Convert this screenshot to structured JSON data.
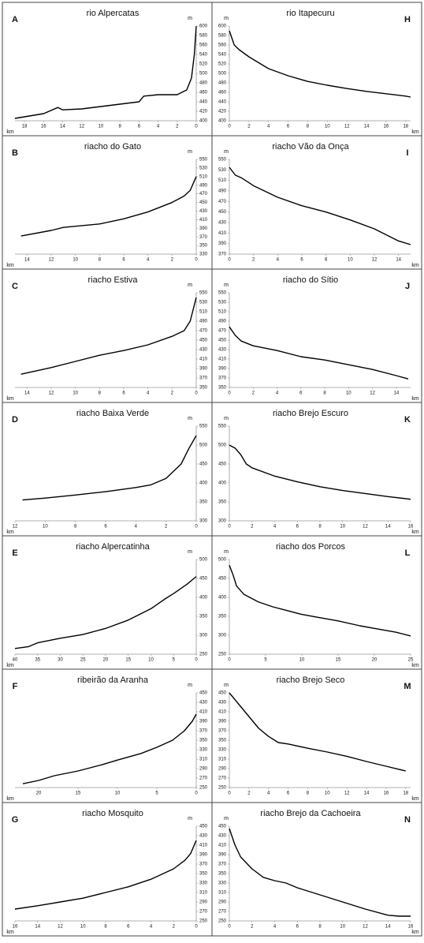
{
  "chart_data": [
    {
      "type": "line",
      "label": "A",
      "title": "rio Alpercatas",
      "xlabel": "km",
      "ylabel": "m",
      "y_axis_side": "right",
      "color": "#000000",
      "xlim": [
        19,
        0
      ],
      "xticks": [
        18,
        16,
        14,
        12,
        10,
        8,
        6,
        4,
        2,
        0
      ],
      "ylim": [
        400,
        600
      ],
      "yticks": [
        400,
        420,
        440,
        460,
        480,
        500,
        520,
        540,
        560,
        580,
        600
      ],
      "x": [
        19,
        16,
        14.5,
        14,
        12,
        10,
        8,
        6,
        5.5,
        4,
        2,
        1,
        0.5,
        0.2,
        0
      ],
      "values": [
        405,
        415,
        428,
        423,
        425,
        430,
        435,
        440,
        452,
        455,
        455,
        465,
        490,
        540,
        600
      ]
    },
    {
      "type": "line",
      "label": "H",
      "title": "rio Itapecuru",
      "xlabel": "km",
      "ylabel": "m",
      "y_axis_side": "left",
      "color": "#000000",
      "xlim": [
        0,
        18.5
      ],
      "xticks": [
        0,
        2,
        4,
        6,
        8,
        10,
        12,
        14,
        16,
        18
      ],
      "ylim": [
        400,
        600
      ],
      "yticks": [
        400,
        420,
        440,
        460,
        480,
        500,
        520,
        540,
        560,
        580,
        600
      ],
      "x": [
        0,
        0.5,
        1,
        2,
        4,
        6,
        8,
        10,
        12,
        14,
        16,
        18,
        18.5
      ],
      "values": [
        590,
        560,
        550,
        535,
        510,
        495,
        483,
        475,
        468,
        462,
        457,
        452,
        450
      ]
    },
    {
      "type": "line",
      "label": "B",
      "title": "riacho do Gato",
      "xlabel": "km",
      "ylabel": "m",
      "y_axis_side": "right",
      "color": "#000000",
      "xlim": [
        15,
        0
      ],
      "xticks": [
        14,
        12,
        10,
        8,
        6,
        4,
        2,
        0
      ],
      "ylim": [
        330,
        550
      ],
      "yticks": [
        330,
        350,
        370,
        390,
        410,
        430,
        450,
        470,
        490,
        510,
        530,
        550
      ],
      "x": [
        14.5,
        12,
        11,
        8,
        6,
        4,
        2,
        1,
        0.5,
        0
      ],
      "values": [
        372,
        385,
        392,
        400,
        412,
        428,
        450,
        465,
        478,
        510
      ]
    },
    {
      "type": "line",
      "label": "I",
      "title": "riacho Vão da Onça",
      "xlabel": "km",
      "ylabel": "m",
      "y_axis_side": "left",
      "color": "#000000",
      "xlim": [
        0,
        15
      ],
      "xticks": [
        0,
        2,
        4,
        6,
        8,
        10,
        12,
        14
      ],
      "ylim": [
        370,
        550
      ],
      "yticks": [
        370,
        390,
        410,
        430,
        450,
        470,
        490,
        510,
        530,
        550
      ],
      "x": [
        0,
        0.5,
        1,
        2,
        4,
        6,
        8,
        10,
        12,
        14,
        15
      ],
      "values": [
        535,
        520,
        515,
        500,
        478,
        462,
        450,
        435,
        418,
        395,
        388
      ]
    },
    {
      "type": "line",
      "label": "C",
      "title": "riacho Estiva",
      "xlabel": "km",
      "ylabel": "m",
      "y_axis_side": "right",
      "color": "#000000",
      "xlim": [
        15,
        0
      ],
      "xticks": [
        14,
        12,
        10,
        8,
        6,
        4,
        2,
        0
      ],
      "ylim": [
        350,
        550
      ],
      "yticks": [
        350,
        370,
        390,
        410,
        430,
        450,
        470,
        490,
        510,
        530,
        550
      ],
      "x": [
        14.5,
        12,
        10,
        8,
        6,
        4,
        2,
        1,
        0.5,
        0
      ],
      "values": [
        378,
        392,
        405,
        418,
        428,
        440,
        458,
        470,
        490,
        540
      ]
    },
    {
      "type": "line",
      "label": "J",
      "title": "riacho do Sítio",
      "xlabel": "km",
      "ylabel": "m",
      "y_axis_side": "left",
      "color": "#000000",
      "xlim": [
        0,
        15.2
      ],
      "xticks": [
        0,
        2,
        4,
        6,
        8,
        10,
        12,
        14
      ],
      "ylim": [
        350,
        550
      ],
      "yticks": [
        350,
        370,
        390,
        410,
        430,
        450,
        470,
        490,
        510,
        530,
        550
      ],
      "x": [
        0,
        0.5,
        1,
        2,
        4,
        6,
        8,
        10,
        12,
        14,
        15
      ],
      "values": [
        478,
        460,
        448,
        438,
        428,
        415,
        408,
        398,
        388,
        375,
        368
      ]
    },
    {
      "type": "line",
      "label": "D",
      "title": "riacho Baixa Verde",
      "xlabel": "km",
      "ylabel": "m",
      "y_axis_side": "right",
      "color": "#000000",
      "xlim": [
        12,
        0
      ],
      "xticks": [
        12,
        10,
        8,
        6,
        4,
        2,
        0
      ],
      "ylim": [
        300,
        550
      ],
      "yticks": [
        300,
        350,
        400,
        450,
        500,
        550
      ],
      "x": [
        11.5,
        10,
        8,
        6,
        4,
        3,
        2,
        1,
        0.5,
        0
      ],
      "values": [
        355,
        360,
        368,
        377,
        388,
        395,
        412,
        450,
        490,
        525
      ]
    },
    {
      "type": "line",
      "label": "K",
      "title": "riacho Brejo Escuro",
      "xlabel": "km",
      "ylabel": "m",
      "y_axis_side": "left",
      "color": "#000000",
      "xlim": [
        0,
        16
      ],
      "xticks": [
        0,
        2,
        4,
        6,
        8,
        10,
        12,
        14,
        16
      ],
      "ylim": [
        300,
        550
      ],
      "yticks": [
        300,
        350,
        400,
        450,
        500,
        550
      ],
      "x": [
        0,
        0.5,
        1,
        1.5,
        2,
        4,
        6,
        8,
        10,
        12,
        14,
        16
      ],
      "values": [
        500,
        492,
        475,
        450,
        440,
        418,
        403,
        390,
        380,
        372,
        364,
        357
      ]
    },
    {
      "type": "line",
      "label": "E",
      "title": "riacho Alpercatinha",
      "xlabel": "km",
      "ylabel": "m",
      "y_axis_side": "right",
      "color": "#000000",
      "xlim": [
        40,
        0
      ],
      "xticks": [
        40,
        35,
        30,
        25,
        20,
        15,
        10,
        5,
        0
      ],
      "ylim": [
        250,
        500
      ],
      "yticks": [
        250,
        300,
        350,
        400,
        450,
        500
      ],
      "x": [
        40,
        37,
        35,
        30,
        25,
        20,
        15,
        10,
        7,
        5,
        2,
        0
      ],
      "values": [
        265,
        270,
        280,
        292,
        302,
        318,
        340,
        370,
        395,
        410,
        435,
        455
      ]
    },
    {
      "type": "line",
      "label": "L",
      "title": "riacho dos Porcos",
      "xlabel": "km",
      "ylabel": "m",
      "y_axis_side": "left",
      "color": "#000000",
      "xlim": [
        0,
        25
      ],
      "xticks": [
        0,
        5,
        10,
        15,
        20,
        25
      ],
      "ylim": [
        250,
        500
      ],
      "yticks": [
        250,
        300,
        350,
        400,
        450,
        500
      ],
      "x": [
        0,
        0.5,
        1,
        2,
        4,
        6,
        8,
        10,
        12,
        15,
        18,
        20,
        23,
        25
      ],
      "values": [
        485,
        460,
        430,
        408,
        388,
        375,
        365,
        355,
        348,
        338,
        325,
        318,
        308,
        298
      ]
    },
    {
      "type": "line",
      "label": "F",
      "title": "ribeirão da Aranha",
      "xlabel": "km",
      "ylabel": "m",
      "y_axis_side": "right",
      "color": "#000000",
      "xlim": [
        23,
        0
      ],
      "xticks": [
        20,
        15,
        10,
        5,
        0
      ],
      "ylim": [
        250,
        450
      ],
      "yticks": [
        250,
        270,
        290,
        310,
        330,
        350,
        370,
        390,
        410,
        430,
        450
      ],
      "x": [
        22,
        20,
        18,
        15,
        12,
        10,
        7,
        5,
        3,
        1.5,
        0.5,
        0
      ],
      "values": [
        258,
        265,
        275,
        285,
        298,
        308,
        322,
        335,
        350,
        370,
        390,
        405
      ]
    },
    {
      "type": "line",
      "label": "M",
      "title": "riacho Brejo Seco",
      "xlabel": "km",
      "ylabel": "m",
      "y_axis_side": "left",
      "color": "#000000",
      "xlim": [
        0,
        18.5
      ],
      "xticks": [
        0,
        2,
        4,
        6,
        8,
        10,
        12,
        14,
        16,
        18
      ],
      "ylim": [
        250,
        450
      ],
      "yticks": [
        250,
        270,
        290,
        310,
        330,
        350,
        370,
        390,
        410,
        430,
        450
      ],
      "x": [
        0,
        1,
        2,
        3,
        4,
        5,
        6,
        8,
        10,
        12,
        14,
        16,
        18
      ],
      "values": [
        450,
        425,
        400,
        375,
        358,
        345,
        342,
        333,
        325,
        316,
        305,
        295,
        285
      ]
    },
    {
      "type": "line",
      "label": "G",
      "title": "riacho Mosquito",
      "xlabel": "km",
      "ylabel": "m",
      "y_axis_side": "right",
      "color": "#000000",
      "xlim": [
        16,
        0
      ],
      "xticks": [
        16,
        14,
        12,
        10,
        8,
        6,
        4,
        2,
        0
      ],
      "ylim": [
        250,
        450
      ],
      "yticks": [
        250,
        270,
        290,
        310,
        330,
        350,
        370,
        390,
        410,
        430,
        450
      ],
      "x": [
        16,
        14,
        12,
        10,
        8,
        6,
        4,
        2,
        1,
        0.5,
        0
      ],
      "values": [
        275,
        282,
        290,
        298,
        310,
        322,
        338,
        360,
        378,
        392,
        420
      ]
    },
    {
      "type": "line",
      "label": "N",
      "title": "riacho Brejo da Cachoeira",
      "xlabel": "km",
      "ylabel": "m",
      "y_axis_side": "left",
      "color": "#000000",
      "xlim": [
        0,
        16
      ],
      "xticks": [
        0,
        2,
        4,
        6,
        8,
        10,
        12,
        14,
        16
      ],
      "ylim": [
        250,
        450
      ],
      "yticks": [
        250,
        270,
        290,
        310,
        330,
        350,
        370,
        390,
        410,
        430,
        450
      ],
      "x": [
        0,
        0.5,
        1,
        2,
        3,
        4,
        5,
        6,
        8,
        10,
        12,
        14,
        15,
        16
      ],
      "values": [
        445,
        410,
        385,
        360,
        342,
        335,
        330,
        320,
        305,
        290,
        275,
        262,
        260,
        260
      ]
    }
  ]
}
